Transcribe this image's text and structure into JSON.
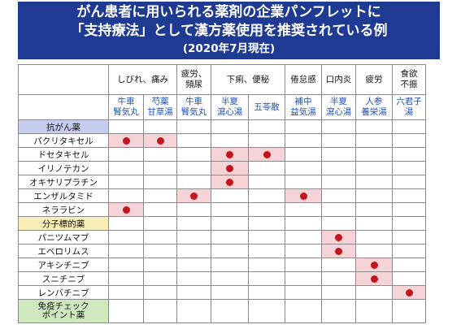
{
  "header": {
    "title_line1": "がん患者に用いられる薬剤の企業パンフレットに",
    "title_line2": "「支持療法」として漢方薬使用を推奨されている例",
    "subtitle": "(2020年7月現在)"
  },
  "symptoms": [
    {
      "label": "しびれ、痛み",
      "span": 2
    },
    {
      "label": "疲労、\n頻尿",
      "span": 1
    },
    {
      "label": "下痢、便秘",
      "span": 2
    },
    {
      "label": "倦怠感",
      "span": 1
    },
    {
      "label": "口内炎",
      "span": 1
    },
    {
      "label": "疲労",
      "span": 1
    },
    {
      "label": "食欲\n不振",
      "span": 1
    }
  ],
  "kampo": [
    "牛車\n腎気丸",
    "芍薬\n甘草湯",
    "牛車\n腎気丸",
    "半夏\n瀉心湯",
    "五苓散",
    "補中\n益気湯",
    "半夏\n瀉心湯",
    "人参\n養栄湯",
    "六君子\n湯"
  ],
  "rows": [
    {
      "type": "category",
      "label": "抗がん薬",
      "style": "blue"
    },
    {
      "type": "drug",
      "label": "パクリタキセル",
      "marks": [
        0,
        1
      ]
    },
    {
      "type": "drug",
      "label": "ドセタキセル",
      "marks": [
        3,
        4
      ]
    },
    {
      "type": "drug",
      "label": "イリノテカン",
      "marks": [
        3
      ]
    },
    {
      "type": "drug",
      "label": "オキサリプラチン",
      "marks": [
        3
      ]
    },
    {
      "type": "drug",
      "label": "エンザルタミド",
      "marks": [
        2,
        5
      ]
    },
    {
      "type": "drug",
      "label": "ネララビン",
      "marks": [
        0
      ]
    },
    {
      "type": "category",
      "label": "分子標的薬",
      "style": "yellow"
    },
    {
      "type": "drug",
      "label": "パニツムマブ",
      "marks": [
        6
      ]
    },
    {
      "type": "drug",
      "label": "エベロリムス",
      "marks": [
        6
      ]
    },
    {
      "type": "drug",
      "label": "アキシチニブ",
      "marks": [
        7
      ]
    },
    {
      "type": "drug",
      "label": "スニチニブ",
      "marks": [
        7
      ]
    },
    {
      "type": "drug",
      "label": "レンバチニブ",
      "marks": [
        8
      ]
    },
    {
      "type": "category",
      "label": "免疫チェック\nポイント薬",
      "style": "green"
    }
  ],
  "colors": {
    "header_bg": "#1f3a93",
    "highlight": "#f6d3d6",
    "dot": "#c4151c",
    "kampo_text": "#1d4fb8"
  }
}
